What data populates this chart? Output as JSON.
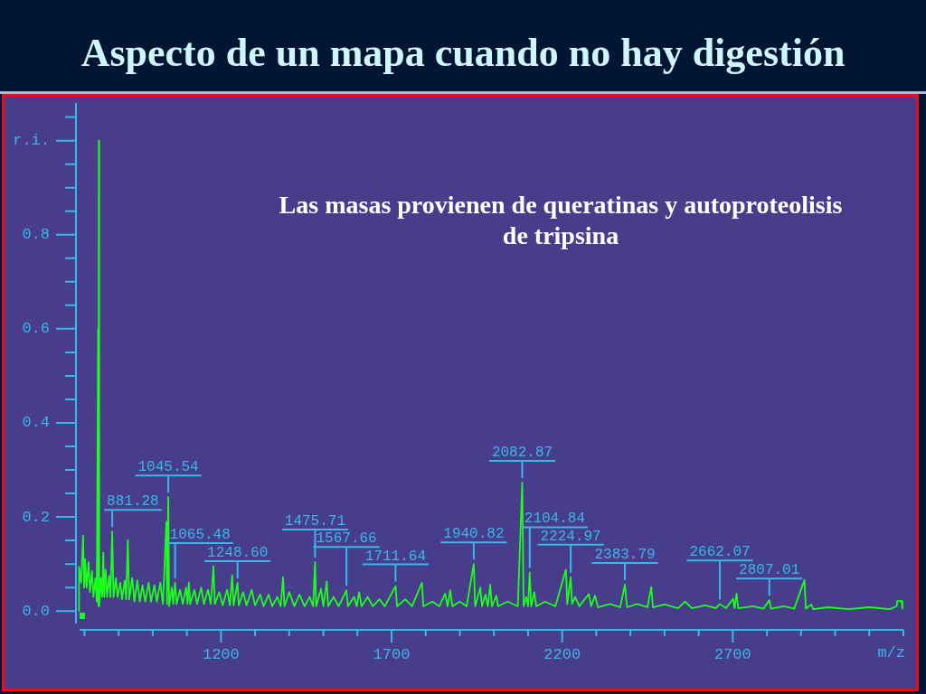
{
  "chart_data": {
    "type": "line",
    "title": "Aspecto de un mapa cuando no hay digestión",
    "xlabel": "m/z",
    "color": "#1cff1c",
    "x": [
      783,
      784,
      790,
      796,
      799,
      802,
      806,
      812,
      816,
      822,
      826,
      832,
      836,
      840,
      841,
      842,
      843,
      848,
      852,
      855,
      858,
      862,
      866,
      872,
      876,
      881.28,
      885,
      892,
      897,
      905,
      910,
      918,
      922,
      927,
      931,
      940,
      946,
      955,
      962,
      970,
      978,
      988,
      995,
      1005,
      1012,
      1022,
      1030,
      1040,
      1042,
      1045.54,
      1048,
      1056,
      1060,
      1065.48,
      1070,
      1080,
      1088,
      1098,
      1102,
      1106,
      1110,
      1122,
      1130,
      1142,
      1150,
      1162,
      1170,
      1178,
      1182,
      1195,
      1205,
      1218,
      1226,
      1233,
      1237,
      1248.6,
      1252,
      1265,
      1275,
      1290,
      1300,
      1315,
      1325,
      1340,
      1350,
      1365,
      1375,
      1382,
      1386,
      1400,
      1415,
      1430,
      1445,
      1460,
      1470,
      1475.71,
      1479,
      1493,
      1500,
      1510,
      1514,
      1530,
      1545,
      1567.66,
      1572,
      1590,
      1598,
      1605,
      1612,
      1630,
      1645,
      1665,
      1680,
      1711.64,
      1716,
      1740,
      1760,
      1789,
      1793,
      1820,
      1840,
      1857,
      1864,
      1872,
      1878,
      1900,
      1920,
      1940.82,
      1945,
      1960,
      1965,
      1975,
      1982,
      1989,
      1994,
      2007,
      2012,
      2040,
      2070,
      2082.87,
      2087,
      2095,
      2100,
      2104.84,
      2109,
      2118,
      2124,
      2150,
      2180,
      2211,
      2215,
      2224.97,
      2229,
      2238,
      2250,
      2278,
      2285,
      2296,
      2305,
      2340,
      2370,
      2383.79,
      2390,
      2420,
      2450,
      2461,
      2466,
      2500,
      2540,
      2560,
      2580,
      2620,
      2650,
      2662.07,
      2680,
      2701,
      2705,
      2711,
      2716,
      2760,
      2790,
      2807.01,
      2812,
      2850,
      2880,
      2910,
      2914,
      2930,
      2936,
      2980,
      3040,
      3100,
      3160,
      3180,
      3182,
      3195,
      3197
    ],
    "values": [
      0,
      0.094,
      0.06,
      0.16,
      0.05,
      0.11,
      0.05,
      0.104,
      0.04,
      0.085,
      0.03,
      0.07,
      0.02,
      0.6,
      0.01,
      1.0,
      0.01,
      0.07,
      0.03,
      0.124,
      0.03,
      0.088,
      0.03,
      0.075,
      0.03,
      0.169,
      0.03,
      0.07,
      0.03,
      0.06,
      0.025,
      0.065,
      0.025,
      0.151,
      0.025,
      0.07,
      0.02,
      0.065,
      0.02,
      0.055,
      0.02,
      0.06,
      0.02,
      0.055,
      0.02,
      0.06,
      0.015,
      0.19,
      0.015,
      0.242,
      0.01,
      0.05,
      0.015,
      0.06,
      0.015,
      0.045,
      0.015,
      0.05,
      0.015,
      0.061,
      0.015,
      0.045,
      0.015,
      0.05,
      0.015,
      0.045,
      0.015,
      0.095,
      0.015,
      0.04,
      0.012,
      0.045,
      0.012,
      0.076,
      0.012,
      0.06,
      0.012,
      0.04,
      0.012,
      0.045,
      0.012,
      0.035,
      0.01,
      0.035,
      0.01,
      0.03,
      0.01,
      0.072,
      0.01,
      0.04,
      0.01,
      0.035,
      0.01,
      0.03,
      0.01,
      0.104,
      0.01,
      0.047,
      0.01,
      0.063,
      0.01,
      0.03,
      0.01,
      0.044,
      0.01,
      0.03,
      0.01,
      0.04,
      0.01,
      0.03,
      0.01,
      0.025,
      0.01,
      0.053,
      0.01,
      0.025,
      0.01,
      0.06,
      0.01,
      0.02,
      0.01,
      0.037,
      0.01,
      0.044,
      0.01,
      0.02,
      0.01,
      0.1,
      0.01,
      0.05,
      0.01,
      0.035,
      0.01,
      0.056,
      0.01,
      0.033,
      0.01,
      0.02,
      0.01,
      0.273,
      0.01,
      0.03,
      0.01,
      0.082,
      0.01,
      0.04,
      0.01,
      0.02,
      0.01,
      0.088,
      0.015,
      0.072,
      0.015,
      0.03,
      0.01,
      0.036,
      0.01,
      0.033,
      0.008,
      0.015,
      0.008,
      0.056,
      0.008,
      0.015,
      0.008,
      0.051,
      0.008,
      0.014,
      0.006,
      0.02,
      0.006,
      0.012,
      0.006,
      0.015,
      0.006,
      0.026,
      0.006,
      0.037,
      0.006,
      0.01,
      0.005,
      0.023,
      0.005,
      0.01,
      0.005,
      0.066,
      0.005,
      0.014,
      0.004,
      0.008,
      0.004,
      0.008,
      0.004,
      0.01,
      0.021,
      0.021,
      0.005
    ],
    "xlim": [
      775,
      3200
    ],
    "xticks": [
      {
        "value": 800,
        "label": null
      },
      {
        "value": 900,
        "label": null
      },
      {
        "value": 1000,
        "label": null
      },
      {
        "value": 1100,
        "label": null
      },
      1200,
      {
        "value": 1300,
        "label": null
      },
      {
        "value": 1400,
        "label": null
      },
      {
        "value": 1500,
        "label": null
      },
      {
        "value": 1600,
        "label": null
      },
      1700,
      {
        "value": 1800,
        "label": null
      },
      {
        "value": 1900,
        "label": null
      },
      {
        "value": 2000,
        "label": null
      },
      {
        "value": 2100,
        "label": null
      },
      2200,
      {
        "value": 2300,
        "label": null
      },
      {
        "value": 2400,
        "label": null
      },
      {
        "value": 2500,
        "label": null
      },
      {
        "value": 2600,
        "label": null
      },
      2700,
      {
        "value": 2800,
        "label": null
      },
      {
        "value": 2900,
        "label": null
      },
      {
        "value": 3000,
        "label": null
      },
      {
        "value": 3100,
        "label": null
      },
      {
        "value": 3200,
        "label": null
      }
    ],
    "ylim": [
      -0.04,
      1.08
    ],
    "yticks": [
      {
        "value": 0,
        "label": "0.0"
      },
      {
        "value": 0.05,
        "label": null
      },
      {
        "value": 0.1,
        "label": null
      },
      {
        "value": 0.15,
        "label": null
      },
      0.2,
      {
        "value": 0.25,
        "label": null
      },
      {
        "value": 0.3,
        "label": null
      },
      {
        "value": 0.35,
        "label": null
      },
      0.4,
      {
        "value": 0.45,
        "label": null
      },
      {
        "value": 0.5,
        "label": null
      },
      {
        "value": 0.55,
        "label": null
      },
      0.6,
      {
        "value": 0.65,
        "label": null
      },
      {
        "value": 0.7,
        "label": null
      },
      {
        "value": 0.75,
        "label": null
      },
      0.8,
      {
        "value": 0.85,
        "label": null
      },
      {
        "value": 0.9,
        "label": null
      },
      {
        "value": 0.95,
        "label": null
      },
      {
        "value": 1,
        "label": "r.i."
      },
      {
        "value": 1.05,
        "label": null
      }
    ],
    "annotations": [
      "Las masas provienen de queratinas y autoproteolisis de tripsina",
      {
        "text": "881.28",
        "x": 881.28,
        "y": 0.169
      },
      {
        "text": "1045.54",
        "x": 1045.54,
        "y": 0.242
      },
      {
        "text": "1065.48",
        "x": 1065.48,
        "y": 0.06
      },
      {
        "text": "1248.60",
        "x": 1248.6,
        "y": 0.06
      },
      {
        "text": "1475.71",
        "x": 1475.71,
        "y": 0.104
      },
      {
        "text": "1567.66",
        "x": 1567.66,
        "y": 0.044
      },
      {
        "text": "1711.64",
        "x": 1711.64,
        "y": 0.053
      },
      {
        "text": "1940.82",
        "x": 1940.82,
        "y": 0.1
      },
      {
        "text": "2082.87",
        "x": 2082.87,
        "y": 0.273
      },
      {
        "text": "2104.84",
        "x": 2104.84,
        "y": 0.082
      },
      {
        "text": "2224.97",
        "x": 2224.97,
        "y": 0.072
      },
      {
        "text": "2383.79",
        "x": 2383.79,
        "y": 0.056
      },
      {
        "text": "2662.07",
        "x": 2662.07,
        "y": 0.015
      },
      {
        "text": "2807.01",
        "x": 2807.01,
        "y": 0.023
      }
    ]
  }
}
